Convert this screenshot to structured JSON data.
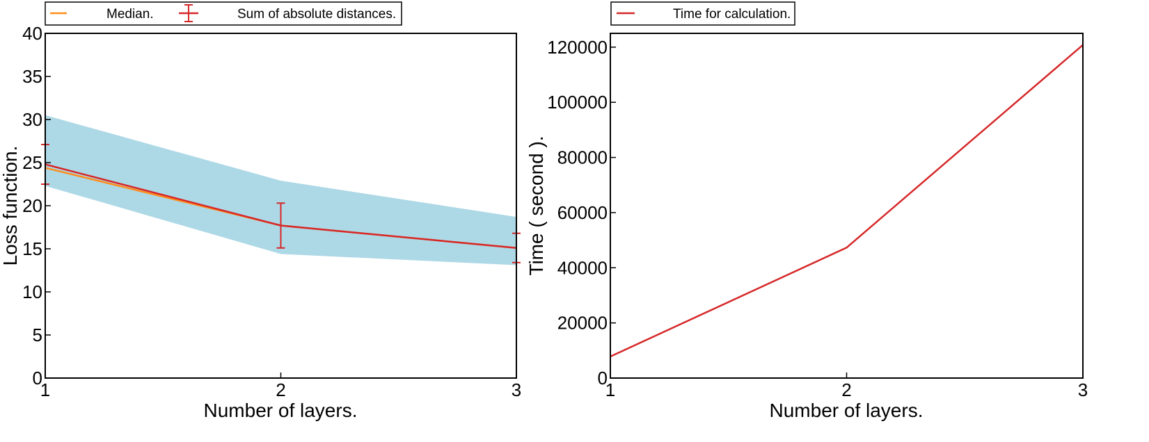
{
  "chart_data": [
    {
      "type": "line",
      "title": "",
      "xlabel": "Number of layers.",
      "ylabel": "Loss function.",
      "x": [
        1,
        2,
        3
      ],
      "xticks": [
        "1",
        "2",
        "3"
      ],
      "xlim": [
        1,
        3
      ],
      "ylim": [
        0,
        40
      ],
      "yticks": [
        "0",
        "5",
        "10",
        "15",
        "20",
        "25",
        "30",
        "35",
        "40"
      ],
      "grid": false,
      "legend_position": "top-left, above plot",
      "band": {
        "lower": [
          22.3,
          14.4,
          13.1
        ],
        "upper": [
          30.5,
          22.9,
          18.7
        ],
        "color": "#add8e6"
      },
      "series": [
        {
          "name": "Median.",
          "values": [
            24.4,
            17.7,
            15.1
          ],
          "color": "#ff8c1a"
        },
        {
          "name": "Sum of absolute distances.",
          "values": [
            24.8,
            17.7,
            15.1
          ],
          "error": [
            2.3,
            2.6,
            1.7
          ],
          "color": "#d62728"
        }
      ]
    },
    {
      "type": "line",
      "title": "",
      "xlabel": "Number of layers.",
      "ylabel": "Time ( second ).",
      "x": [
        1,
        2,
        3
      ],
      "xticks": [
        "1",
        "2",
        "3"
      ],
      "xlim": [
        1,
        3
      ],
      "ylim": [
        0,
        125000
      ],
      "yticks": [
        "0",
        "20000",
        "40000",
        "60000",
        "80000",
        "100000",
        "120000"
      ],
      "grid": false,
      "legend_position": "top-left, above plot",
      "series": [
        {
          "name": "Time for calculation.",
          "values": [
            7800,
            47300,
            120800
          ],
          "color": "#d62728"
        }
      ]
    }
  ]
}
